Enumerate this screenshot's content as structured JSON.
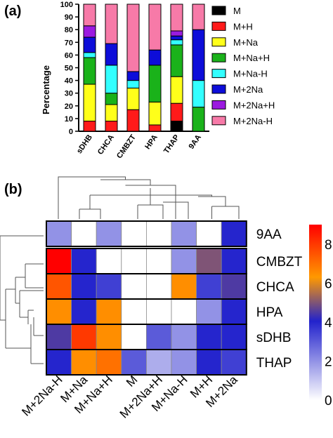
{
  "panel_a_label": "(a)",
  "panel_b_label": "(b)",
  "chart_data": [
    {
      "type": "bar",
      "stacked": true,
      "ylabel": "Percentage",
      "ylim": [
        0,
        100
      ],
      "yticks": [
        "0",
        "10",
        "20",
        "30",
        "40",
        "50",
        "60",
        "70",
        "80",
        "90",
        "100"
      ],
      "categories": [
        "sDHB",
        "CHCA",
        "CMBZT",
        "HPA",
        "THAP",
        "9AA"
      ],
      "series": [
        {
          "name": "M",
          "color": "#000000",
          "values": [
            0,
            0,
            0,
            0,
            8,
            0
          ]
        },
        {
          "name": "M+H",
          "color": "#ff1a1a",
          "values": [
            8,
            8,
            17,
            5,
            14,
            0
          ]
        },
        {
          "name": "M+Na",
          "color": "#ffff1a",
          "values": [
            29,
            13,
            17,
            18,
            21,
            0
          ]
        },
        {
          "name": "M+Na+H",
          "color": "#1ab21a",
          "values": [
            21,
            9,
            0,
            29,
            25,
            19
          ]
        },
        {
          "name": "M+Na-H",
          "color": "#33ffff",
          "values": [
            4,
            22,
            6,
            0,
            4,
            21
          ]
        },
        {
          "name": "M+2Na",
          "color": "#0d0dd9",
          "values": [
            12,
            17,
            7,
            12,
            3,
            40
          ]
        },
        {
          "name": "M+2Na+H",
          "color": "#9b1ae0",
          "values": [
            9,
            0,
            0,
            0,
            4,
            0
          ]
        },
        {
          "name": "M+2Na-H",
          "color": "#f77aa8",
          "values": [
            17,
            31,
            53,
            36,
            21,
            20
          ]
        }
      ],
      "legend_position": "right"
    },
    {
      "type": "heatmap",
      "columns": [
        "M+2Na-H",
        "M+Na",
        "M+Na+H",
        "M",
        "M+2Na+H",
        "M+Na-H",
        "M+H",
        "M+2Na"
      ],
      "rows": [
        "9AA",
        "CMBZT",
        "CHCA",
        "HPA",
        "sDHB",
        "THAP"
      ],
      "values": [
        [
          2,
          0,
          2,
          0,
          0,
          2,
          0,
          4
        ],
        [
          9,
          4,
          0,
          0,
          0,
          2,
          5,
          4
        ],
        [
          7.5,
          4,
          3.5,
          0,
          0,
          6.5,
          3.5,
          4.5
        ],
        [
          6.5,
          4,
          6.5,
          0,
          0,
          0,
          2,
          4
        ],
        [
          4.5,
          8,
          6.5,
          0,
          3,
          2,
          4,
          4
        ],
        [
          4,
          6.5,
          7,
          3,
          1.5,
          2,
          4,
          3.5
        ]
      ],
      "colorbar": {
        "ticks": [
          "0",
          "2",
          "4",
          "6",
          "8"
        ],
        "min": 0,
        "max": 9
      },
      "colors": {
        "low": "#ffffff",
        "mid": "#2222cc",
        "high_mid": "#ff9900",
        "high": "#ff0000"
      }
    }
  ]
}
